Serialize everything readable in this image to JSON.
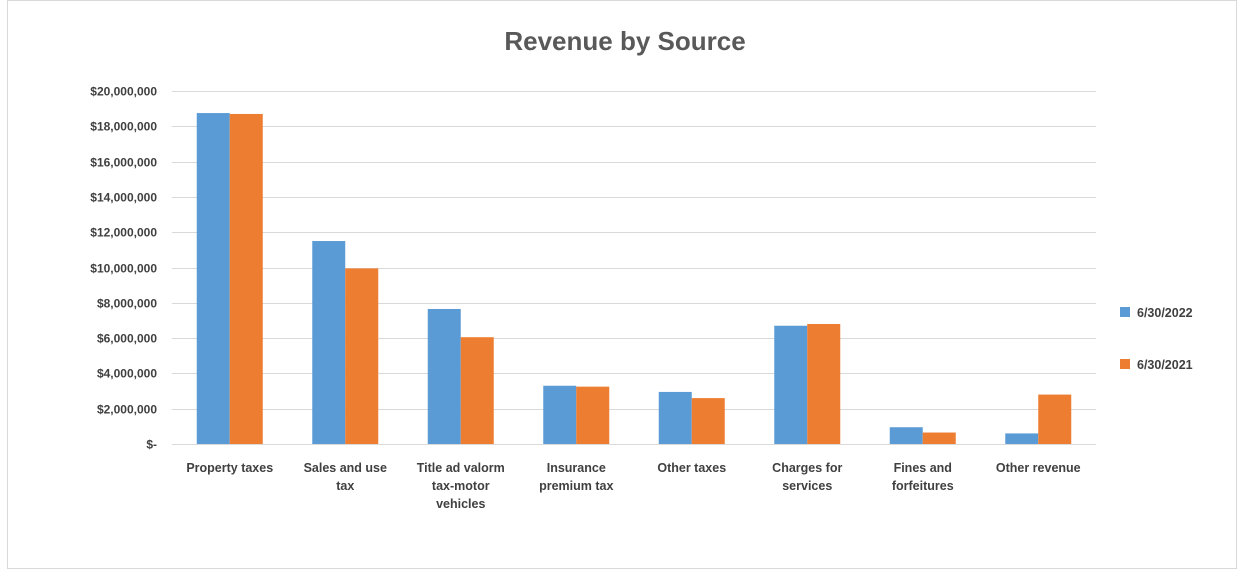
{
  "chart_data": {
    "type": "bar",
    "title": "Revenue by Source",
    "xlabel": "",
    "ylabel": "",
    "ylim": [
      0,
      20000000
    ],
    "yticks": [
      {
        "value": 0,
        "label": "$-"
      },
      {
        "value": 2000000,
        "label": "$2,000,000"
      },
      {
        "value": 4000000,
        "label": "$4,000,000"
      },
      {
        "value": 6000000,
        "label": "$6,000,000"
      },
      {
        "value": 8000000,
        "label": "$8,000,000"
      },
      {
        "value": 10000000,
        "label": "$10,000,000"
      },
      {
        "value": 12000000,
        "label": "$12,000,000"
      },
      {
        "value": 14000000,
        "label": "$14,000,000"
      },
      {
        "value": 16000000,
        "label": "$16,000,000"
      },
      {
        "value": 18000000,
        "label": "$18,000,000"
      },
      {
        "value": 20000000,
        "label": "$20,000,000"
      }
    ],
    "grid": true,
    "legend_position": "right",
    "categories": [
      [
        "Property taxes"
      ],
      [
        "Sales and use",
        "tax"
      ],
      [
        "Title ad valorm",
        "tax-motor",
        "vehicles"
      ],
      [
        "Insurance",
        "premium tax"
      ],
      [
        "Other taxes"
      ],
      [
        "Charges for",
        "services"
      ],
      [
        "Fines and",
        "forfeitures"
      ],
      [
        "Other revenue"
      ]
    ],
    "series": [
      {
        "name": "6/30/2022",
        "color": "#5b9bd5",
        "values": [
          18750000,
          11500000,
          7650000,
          3300000,
          2950000,
          6700000,
          950000,
          600000
        ]
      },
      {
        "name": "6/30/2021",
        "color": "#ed7d31",
        "values": [
          18700000,
          9950000,
          6050000,
          3250000,
          2600000,
          6800000,
          650000,
          2800000
        ]
      }
    ]
  }
}
